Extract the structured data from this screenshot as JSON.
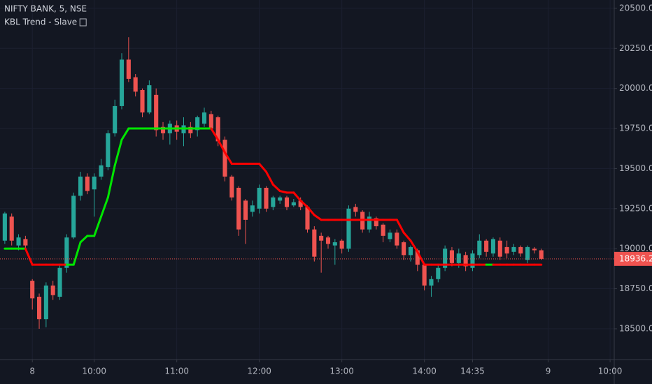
{
  "chart_data": {
    "type": "candlestick",
    "title": "NIFTY BANK, 5, NSE",
    "indicator_title": "KBL Trend - Slave",
    "up_color": "#26a69a",
    "down_color": "#ef5350",
    "grid": true,
    "xlim": [
      -0.7,
      88.6
    ],
    "ylim": [
      18308,
      20552
    ],
    "xticks": [
      {
        "value": 4,
        "label": "8"
      },
      {
        "value": 13,
        "label": "10:00"
      },
      {
        "value": 25,
        "label": "11:00"
      },
      {
        "value": 37,
        "label": "12:00"
      },
      {
        "value": 49,
        "label": "13:00"
      },
      {
        "value": 61,
        "label": "14:00"
      },
      {
        "value": 68,
        "label": "14:35"
      },
      {
        "value": 79,
        "label": "9"
      },
      {
        "value": 88,
        "label": "10:00"
      }
    ],
    "yticks": [
      {
        "value": 18500,
        "label": "18500.00"
      },
      {
        "value": 18750,
        "label": "18750.00"
      },
      {
        "value": 19000,
        "label": "19000.00"
      },
      {
        "value": 19250,
        "label": "19250.00"
      },
      {
        "value": 19500,
        "label": "19500.00"
      },
      {
        "value": 19750,
        "label": "19750.00"
      },
      {
        "value": 20000,
        "label": "20000.00"
      },
      {
        "value": 20250,
        "label": "20250.00"
      },
      {
        "value": 20500,
        "label": "20500.00"
      }
    ],
    "open": [
      19050,
      19200,
      19020,
      19060,
      18800,
      18700,
      18560,
      18770,
      18700,
      18880,
      19070,
      19330,
      19450,
      19370,
      19450,
      19510,
      19720,
      19890,
      20180,
      20070,
      19990,
      19850,
      19960,
      19760,
      19720,
      19770,
      19720,
      19760,
      19740,
      19780,
      19840,
      19820,
      19680,
      19450,
      19380,
      19300,
      19230,
      19250,
      19380,
      19260,
      19300,
      19320,
      19270,
      19300,
      19260,
      19120,
      19080,
      19070,
      19020,
      19050,
      19000,
      19260,
      19230,
      19120,
      19190,
      19150,
      19060,
      19100,
      19040,
      18960,
      18990,
      18900,
      18770,
      18810,
      18880,
      18990,
      18910,
      18960,
      18880,
      18960,
      19050,
      18970,
      19050,
      19010,
      18980,
      19010,
      18930,
      19000,
      18990
    ],
    "high": [
      19230,
      19220,
      19090,
      19080,
      18810,
      18720,
      18790,
      18800,
      18900,
      19090,
      19350,
      19480,
      19470,
      19470,
      19560,
      19740,
      19930,
      20220,
      20320,
      20090,
      20000,
      20050,
      20000,
      19790,
      19800,
      19800,
      19820,
      19790,
      19830,
      19880,
      19860,
      19830,
      19700,
      19460,
      19390,
      19310,
      19300,
      19400,
      19390,
      19330,
      19330,
      19330,
      19310,
      19320,
      19270,
      19140,
      19100,
      19080,
      19060,
      19060,
      19270,
      19280,
      19240,
      19230,
      19200,
      19160,
      19120,
      19120,
      19050,
      19020,
      19000,
      18910,
      18830,
      18900,
      19020,
      19010,
      19000,
      18980,
      18990,
      19090,
      19060,
      19070,
      19070,
      19050,
      19030,
      19020,
      19020,
      19010,
      19000
    ],
    "low": [
      19030,
      19020,
      18990,
      19000,
      18620,
      18500,
      18510,
      18680,
      18680,
      18850,
      19060,
      19300,
      19340,
      19200,
      19430,
      19490,
      19700,
      19870,
      20040,
      19950,
      19820,
      19840,
      19700,
      19680,
      19650,
      19680,
      19640,
      19690,
      19700,
      19760,
      19740,
      19640,
      19420,
      19300,
      19080,
      19030,
      19200,
      19220,
      19230,
      19240,
      19280,
      19240,
      19260,
      19240,
      19100,
      18920,
      18850,
      19000,
      18900,
      18970,
      18980,
      19200,
      19100,
      19100,
      19120,
      19040,
      19040,
      19000,
      18930,
      18920,
      18860,
      18740,
      18700,
      18790,
      18860,
      18890,
      18880,
      18860,
      18860,
      18940,
      18950,
      18950,
      18930,
      18940,
      18960,
      18950,
      18910,
      18970,
      18930
    ],
    "close": [
      19220,
      19050,
      19070,
      19020,
      18690,
      18560,
      18770,
      18710,
      18880,
      19070,
      19330,
      19450,
      19360,
      19450,
      19520,
      19720,
      19890,
      20180,
      20060,
      19980,
      19850,
      20020,
      19740,
      19720,
      19780,
      19730,
      19770,
      19720,
      19820,
      19850,
      19750,
      19670,
      19450,
      19320,
      19120,
      19180,
      19270,
      19380,
      19250,
      19320,
      19320,
      19260,
      19290,
      19260,
      19120,
      18950,
      19050,
      19030,
      19040,
      19000,
      19250,
      19230,
      19120,
      19200,
      19140,
      19080,
      19100,
      19020,
      18960,
      19010,
      18900,
      18770,
      18810,
      18880,
      19000,
      18910,
      18970,
      18890,
      18970,
      19050,
      18980,
      19060,
      18950,
      18970,
      19010,
      18970,
      19010,
      18990,
      18936.2
    ],
    "trend": {
      "colors": [
        "#00e600",
        "#ff0000"
      ],
      "values": [
        19000,
        19000,
        19000,
        19000,
        18900,
        18900,
        18900,
        18900,
        18900,
        18900,
        18900,
        19040,
        19080,
        19080,
        19200,
        19320,
        19520,
        19680,
        19750,
        19750,
        19750,
        19750,
        19750,
        19750,
        19750,
        19750,
        19750,
        19750,
        19750,
        19750,
        19750,
        19680,
        19600,
        19530,
        19530,
        19530,
        19530,
        19530,
        19480,
        19400,
        19360,
        19350,
        19350,
        19300,
        19260,
        19210,
        19180,
        19180,
        19180,
        19180,
        19180,
        19180,
        19180,
        19180,
        19180,
        19180,
        19180,
        19180,
        19100,
        19050,
        18980,
        18900,
        18900,
        18900,
        18900,
        18900,
        18900,
        18900,
        18900,
        18900,
        18900,
        18900,
        18900,
        18900,
        18900,
        18900,
        18900,
        18900,
        18900
      ],
      "color_index": [
        0,
        0,
        0,
        0,
        1,
        1,
        1,
        1,
        1,
        1,
        0,
        0,
        0,
        0,
        0,
        0,
        0,
        0,
        0,
        0,
        0,
        0,
        0,
        0,
        0,
        0,
        0,
        0,
        0,
        0,
        0,
        1,
        1,
        1,
        1,
        1,
        1,
        1,
        1,
        1,
        1,
        1,
        1,
        1,
        1,
        1,
        1,
        1,
        1,
        1,
        1,
        1,
        1,
        1,
        1,
        1,
        1,
        1,
        1,
        1,
        1,
        1,
        1,
        1,
        1,
        1,
        1,
        1,
        1,
        1,
        1,
        0,
        1,
        1,
        1,
        1,
        1,
        1,
        1
      ]
    },
    "last_price": {
      "value": 18936.2,
      "label": "18936.20",
      "color": "#ef5350"
    }
  }
}
